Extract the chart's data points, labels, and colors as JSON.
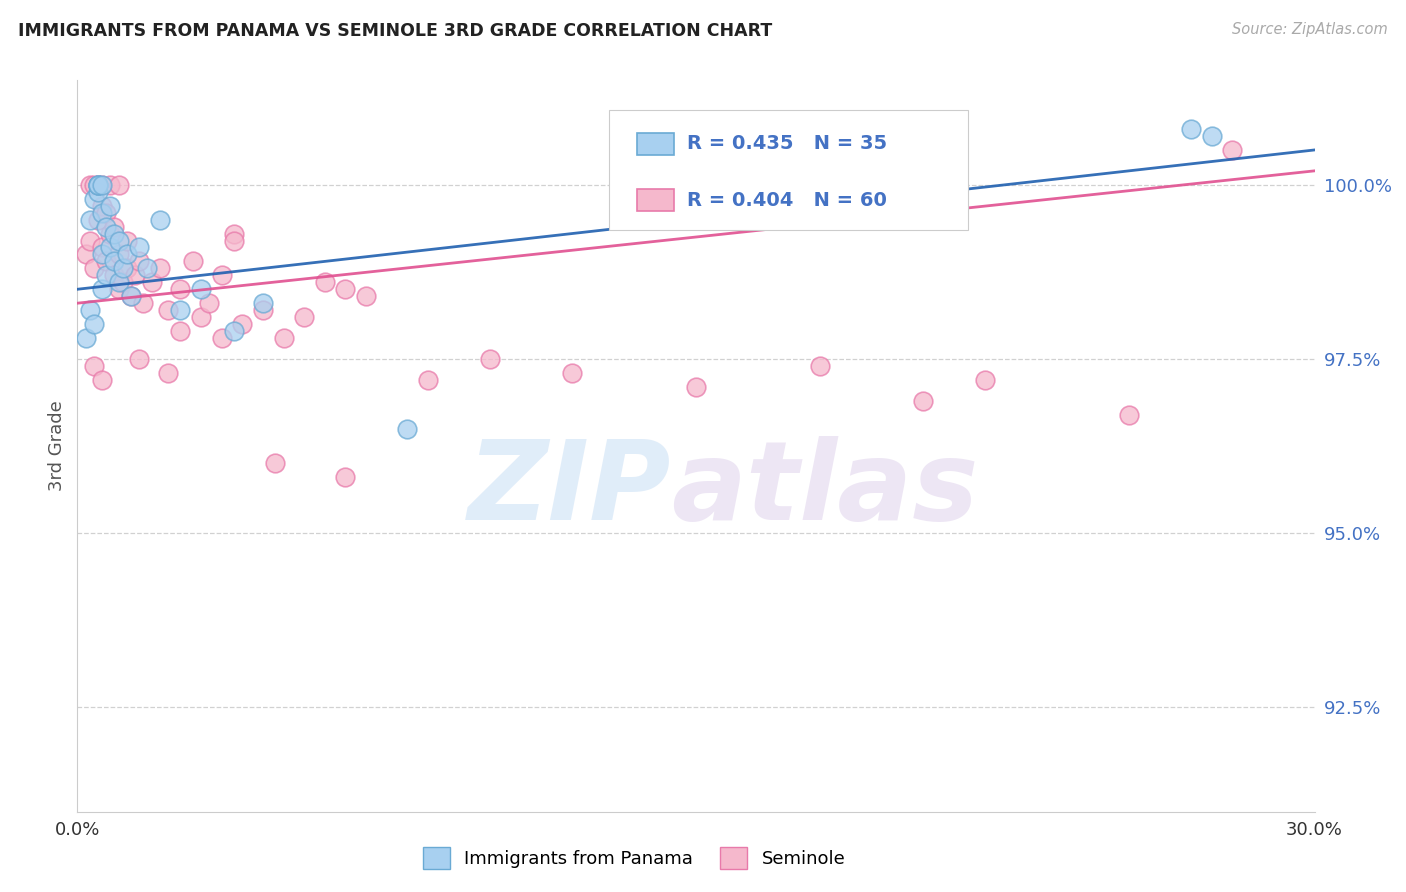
{
  "title": "IMMIGRANTS FROM PANAMA VS SEMINOLE 3RD GRADE CORRELATION CHART",
  "source_text": "Source: ZipAtlas.com",
  "ylabel": "3rd Grade",
  "xlim": [
    0.0,
    30.0
  ],
  "ylim": [
    91.0,
    101.5
  ],
  "yticks": [
    92.5,
    95.0,
    97.5,
    100.0
  ],
  "ytick_labels": [
    "92.5%",
    "95.0%",
    "97.5%",
    "100.0%"
  ],
  "legend_r1": "R = 0.435",
  "legend_n1": "N = 35",
  "legend_r2": "R = 0.404",
  "legend_n2": "N = 60",
  "legend_label1": "Immigrants from Panama",
  "legend_label2": "Seminole",
  "blue_color": "#a8d0f0",
  "pink_color": "#f5b8cc",
  "blue_edge_color": "#6aaad4",
  "pink_edge_color": "#e87aaa",
  "blue_line_color": "#2060b0",
  "pink_line_color": "#e05090",
  "watermark_zip": "ZIP",
  "watermark_atlas": "atlas",
  "blue_scatter_x": [
    0.2,
    0.3,
    0.3,
    0.4,
    0.4,
    0.5,
    0.5,
    0.5,
    0.5,
    0.6,
    0.6,
    0.6,
    0.6,
    0.7,
    0.7,
    0.8,
    0.8,
    0.9,
    0.9,
    1.0,
    1.0,
    1.1,
    1.2,
    1.3,
    1.5,
    1.7,
    2.0,
    2.5,
    3.0,
    3.8,
    4.5,
    8.0,
    20.5,
    27.0,
    27.5
  ],
  "blue_scatter_y": [
    97.8,
    98.2,
    99.5,
    98.0,
    99.8,
    99.9,
    100.0,
    100.0,
    100.0,
    98.5,
    99.0,
    99.6,
    100.0,
    98.7,
    99.4,
    99.1,
    99.7,
    98.9,
    99.3,
    98.6,
    99.2,
    98.8,
    99.0,
    98.4,
    99.1,
    98.8,
    99.5,
    98.2,
    98.5,
    97.9,
    98.3,
    96.5,
    100.5,
    100.8,
    100.7
  ],
  "pink_scatter_x": [
    0.2,
    0.3,
    0.3,
    0.4,
    0.4,
    0.5,
    0.5,
    0.6,
    0.6,
    0.6,
    0.7,
    0.7,
    0.8,
    0.8,
    0.9,
    0.9,
    1.0,
    1.0,
    1.0,
    1.1,
    1.2,
    1.2,
    1.3,
    1.4,
    1.5,
    1.6,
    1.8,
    2.0,
    2.2,
    2.5,
    2.8,
    3.0,
    3.2,
    3.5,
    3.8,
    4.0,
    4.5,
    5.0,
    5.5,
    6.0,
    6.5,
    7.0,
    2.5,
    3.8,
    1.5,
    2.2,
    3.5,
    4.8,
    6.5,
    8.5,
    10.0,
    12.0,
    15.0,
    18.0,
    20.5,
    22.0,
    25.5,
    28.0,
    0.4,
    0.6
  ],
  "pink_scatter_y": [
    99.0,
    99.2,
    100.0,
    98.8,
    100.0,
    99.5,
    100.0,
    99.1,
    99.7,
    100.0,
    98.9,
    99.6,
    99.3,
    100.0,
    98.7,
    99.4,
    98.5,
    99.0,
    100.0,
    98.6,
    98.8,
    99.2,
    98.4,
    98.7,
    98.9,
    98.3,
    98.6,
    98.8,
    98.2,
    98.5,
    98.9,
    98.1,
    98.3,
    98.7,
    99.3,
    98.0,
    98.2,
    97.8,
    98.1,
    98.6,
    98.5,
    98.4,
    97.9,
    99.2,
    97.5,
    97.3,
    97.8,
    96.0,
    95.8,
    97.2,
    97.5,
    97.3,
    97.1,
    97.4,
    96.9,
    97.2,
    96.7,
    100.5,
    97.4,
    97.2
  ],
  "blue_trendline_x": [
    0.0,
    30.0
  ],
  "blue_trendline_y": [
    98.5,
    100.5
  ],
  "pink_trendline_x": [
    0.0,
    30.0
  ],
  "pink_trendline_y": [
    98.3,
    100.2
  ]
}
